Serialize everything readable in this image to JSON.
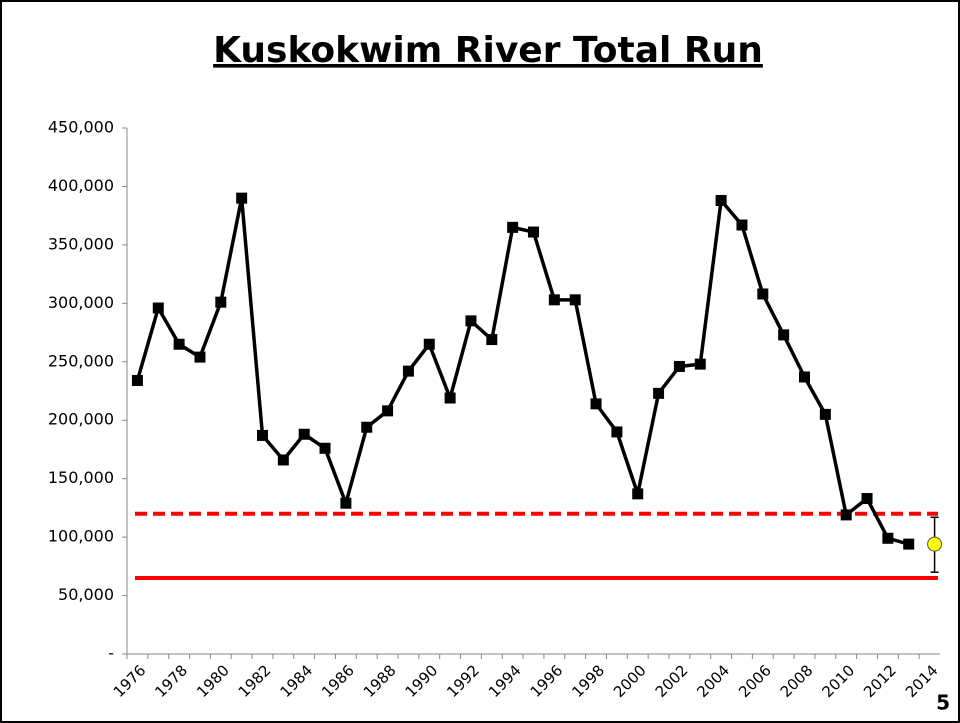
{
  "chart_data": {
    "type": "line",
    "title": "Kuskokwim River Total Run",
    "page_number": "5",
    "categories": [
      "1976",
      null,
      "1978",
      null,
      "1980",
      null,
      "1982",
      null,
      "1984",
      null,
      "1986",
      null,
      "1988",
      null,
      "1990",
      null,
      "1992",
      null,
      "1994",
      null,
      "1996",
      null,
      "1998",
      null,
      "2000",
      null,
      "2002",
      null,
      "2004",
      null,
      "2006",
      null,
      "2008",
      null,
      "2010",
      null,
      "2012",
      null,
      "2014"
    ],
    "series": [
      {
        "color": "#000000",
        "values": [
          234000,
          296000,
          265000,
          254000,
          301000,
          390000,
          187000,
          166000,
          188000,
          176000,
          129000,
          194000,
          208000,
          242000,
          265000,
          219000,
          285000,
          269000,
          365000,
          361000,
          303000,
          303000,
          214000,
          190000,
          137000,
          223000,
          246000,
          248000,
          388000,
          367000,
          308000,
          273000,
          237000,
          205000,
          119000,
          133000,
          99000,
          94000,
          null
        ]
      }
    ],
    "forecast": {
      "index": 38,
      "value": 94000,
      "low": 70000,
      "high": 117000,
      "color": "#ffff00"
    },
    "reference_lines": [
      {
        "value": 120000,
        "style": "dashed",
        "color": "#ff0000"
      },
      {
        "value": 65000,
        "style": "solid",
        "color": "#ff0000"
      }
    ],
    "ylim": [
      0,
      450000
    ],
    "yticks": [
      {
        "value": 0,
        "label": "-"
      },
      {
        "value": 50000,
        "label": "50,000"
      },
      {
        "value": 100000,
        "label": "100,000"
      },
      {
        "value": 150000,
        "label": "150,000"
      },
      {
        "value": 200000,
        "label": "200,000"
      },
      {
        "value": 250000,
        "label": "250,000"
      },
      {
        "value": 300000,
        "label": "300,000"
      },
      {
        "value": 350000,
        "label": "350,000"
      },
      {
        "value": 400000,
        "label": "400,000"
      },
      {
        "value": 450000,
        "label": "450,000"
      }
    ]
  }
}
